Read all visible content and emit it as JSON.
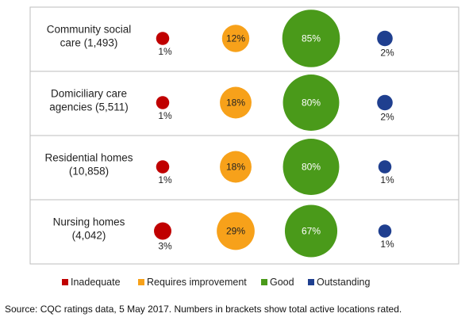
{
  "chart_data": {
    "type": "bubble-matrix",
    "categories": [
      [
        "Community social",
        "care (1,493)"
      ],
      [
        "Domiciliary care",
        "agencies (5,511)"
      ],
      [
        "Residential homes",
        "(10,858)"
      ],
      [
        "Nursing homes",
        "(4,042)"
      ]
    ],
    "series": [
      {
        "name": "Inadequate",
        "color": "#c00000",
        "values": [
          1,
          1,
          1,
          3
        ]
      },
      {
        "name": "Requires improvement",
        "color": "#f7a11a",
        "values": [
          12,
          18,
          18,
          29
        ]
      },
      {
        "name": "Good",
        "color": "#4a9a1a",
        "values": [
          85,
          80,
          80,
          67
        ]
      },
      {
        "name": "Outstanding",
        "color": "#1f3f8f",
        "values": [
          2,
          2,
          1,
          1
        ]
      }
    ],
    "value_suffix": "%",
    "legend_position": "bottom"
  },
  "source": "Source: CQC ratings data, 5 May 2017. Numbers in brackets show total active locations rated."
}
